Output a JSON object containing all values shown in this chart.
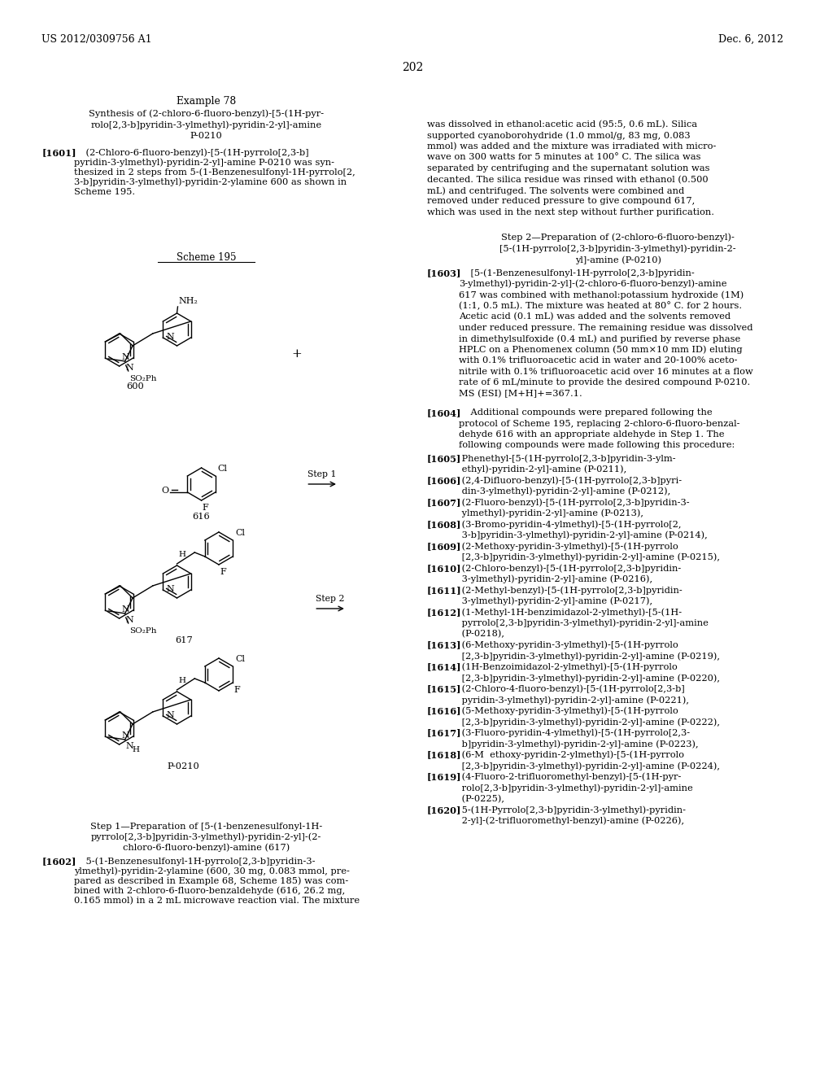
{
  "background_color": "#ffffff",
  "header_left": "US 2012/0309756 A1",
  "header_right": "Dec. 6, 2012",
  "page_number": "202"
}
